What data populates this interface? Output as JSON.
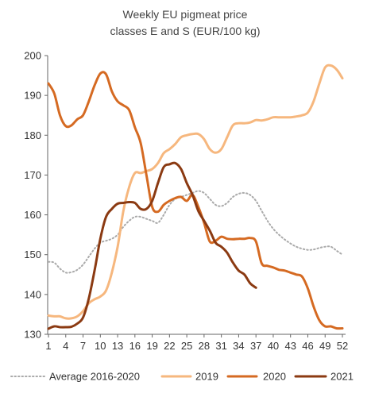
{
  "chart_data": {
    "type": "line",
    "title_lines": [
      "Weekly EU pigmeat price",
      "classes E and S (EUR/100 kg)"
    ],
    "xlabel": "",
    "ylabel": "",
    "ylim": [
      130,
      200
    ],
    "yticks": [
      130,
      140,
      150,
      160,
      170,
      180,
      190,
      200
    ],
    "xlim": [
      1,
      52
    ],
    "xticks": [
      1,
      4,
      7,
      10,
      13,
      16,
      19,
      22,
      25,
      28,
      31,
      34,
      37,
      40,
      43,
      46,
      49,
      52
    ],
    "grid": false,
    "legend_position": "bottom",
    "series": [
      {
        "name": "Average 2016-2020",
        "color": "#aaaaaa",
        "style": "dotted",
        "x": [
          1,
          2,
          3,
          4,
          5,
          6,
          7,
          8,
          9,
          10,
          11,
          12,
          13,
          14,
          15,
          16,
          17,
          18,
          19,
          20,
          21,
          22,
          23,
          24,
          25,
          26,
          27,
          28,
          29,
          30,
          31,
          32,
          33,
          34,
          35,
          36,
          37,
          38,
          39,
          40,
          41,
          42,
          43,
          44,
          45,
          46,
          47,
          48,
          49,
          50,
          51,
          52
        ],
        "y": [
          148.2,
          148,
          146.5,
          145.5,
          145.6,
          146.2,
          147.5,
          149.5,
          151.5,
          153,
          153.5,
          154,
          155,
          157,
          158.5,
          159.5,
          159.5,
          159,
          158.5,
          158,
          160,
          162.5,
          164,
          164.5,
          165,
          165.5,
          166,
          165.5,
          164,
          162.5,
          162.2,
          163,
          164.5,
          165.3,
          165.5,
          165,
          163.5,
          161,
          158.5,
          156.5,
          155,
          153.8,
          152.8,
          152,
          151.5,
          151.2,
          151.3,
          151.7,
          152,
          152,
          151,
          150
        ]
      },
      {
        "name": "2019",
        "color": "#f6b77e",
        "style": "solid",
        "x": [
          1,
          2,
          3,
          4,
          5,
          6,
          7,
          8,
          9,
          10,
          11,
          12,
          13,
          14,
          15,
          16,
          17,
          18,
          19,
          20,
          21,
          22,
          23,
          24,
          25,
          26,
          27,
          28,
          29,
          30,
          31,
          32,
          33,
          34,
          35,
          36,
          37,
          38,
          39,
          40,
          41,
          42,
          43,
          44,
          45,
          46,
          47,
          48,
          49,
          50,
          51,
          52
        ],
        "y": [
          134.7,
          134.5,
          134.5,
          134,
          134,
          134.5,
          135.8,
          137.8,
          138.8,
          139.5,
          141,
          145.5,
          152,
          161,
          167,
          170.5,
          170.5,
          171,
          171.5,
          173,
          175.5,
          176.5,
          177.8,
          179.5,
          180,
          180.3,
          180.3,
          179,
          176.5,
          175.6,
          176.5,
          179.5,
          182.5,
          183,
          183,
          183.2,
          183.8,
          183.7,
          184,
          184.5,
          184.5,
          184.5,
          184.5,
          184.7,
          185,
          185.7,
          188.5,
          193,
          197,
          197.5,
          196.5,
          194.3
        ]
      },
      {
        "name": "2020",
        "color": "#d56a22",
        "style": "solid",
        "x": [
          1,
          2,
          3,
          4,
          5,
          6,
          7,
          8,
          9,
          10,
          11,
          12,
          13,
          14,
          15,
          16,
          17,
          18,
          19,
          20,
          21,
          22,
          23,
          24,
          25,
          26,
          27,
          28,
          29,
          30,
          31,
          32,
          33,
          34,
          35,
          36,
          37,
          38,
          39,
          40,
          41,
          42,
          43,
          44,
          45,
          46,
          47,
          48,
          49,
          50,
          51,
          52
        ],
        "y": [
          193,
          190.5,
          185,
          182.3,
          182.5,
          184,
          185,
          188.5,
          192.5,
          195.5,
          195.3,
          191,
          188.5,
          187.5,
          186.3,
          182,
          178,
          170,
          162,
          160.8,
          162.5,
          163.5,
          164.2,
          164.5,
          163.5,
          165,
          162,
          158,
          153.3,
          153.5,
          154.5,
          154,
          153.9,
          154,
          154,
          154.2,
          153.3,
          147.8,
          147.2,
          146.8,
          146.2,
          146,
          145.5,
          145,
          144.5,
          141.5,
          137,
          133.5,
          132,
          132,
          131.5,
          131.5
        ]
      },
      {
        "name": "2021",
        "color": "#8b3a12",
        "style": "solid",
        "x": [
          1,
          2,
          3,
          4,
          5,
          6,
          7,
          8,
          9,
          10,
          11,
          12,
          13,
          14,
          15,
          16,
          17,
          18,
          19,
          20,
          21,
          22,
          23,
          24,
          25,
          26,
          27,
          28,
          29,
          30,
          31,
          32,
          33,
          34,
          35,
          36,
          37
        ],
        "y": [
          131.4,
          132,
          131.8,
          131.8,
          131.9,
          132.7,
          134.2,
          139,
          146,
          154,
          159.5,
          161.5,
          162.8,
          163,
          163.2,
          163,
          161.5,
          161.5,
          163.5,
          168,
          172,
          172.7,
          173,
          171.5,
          168,
          165,
          161,
          158.5,
          156,
          153,
          152,
          150.5,
          148,
          146,
          145,
          142.8,
          141.7
        ]
      }
    ]
  }
}
